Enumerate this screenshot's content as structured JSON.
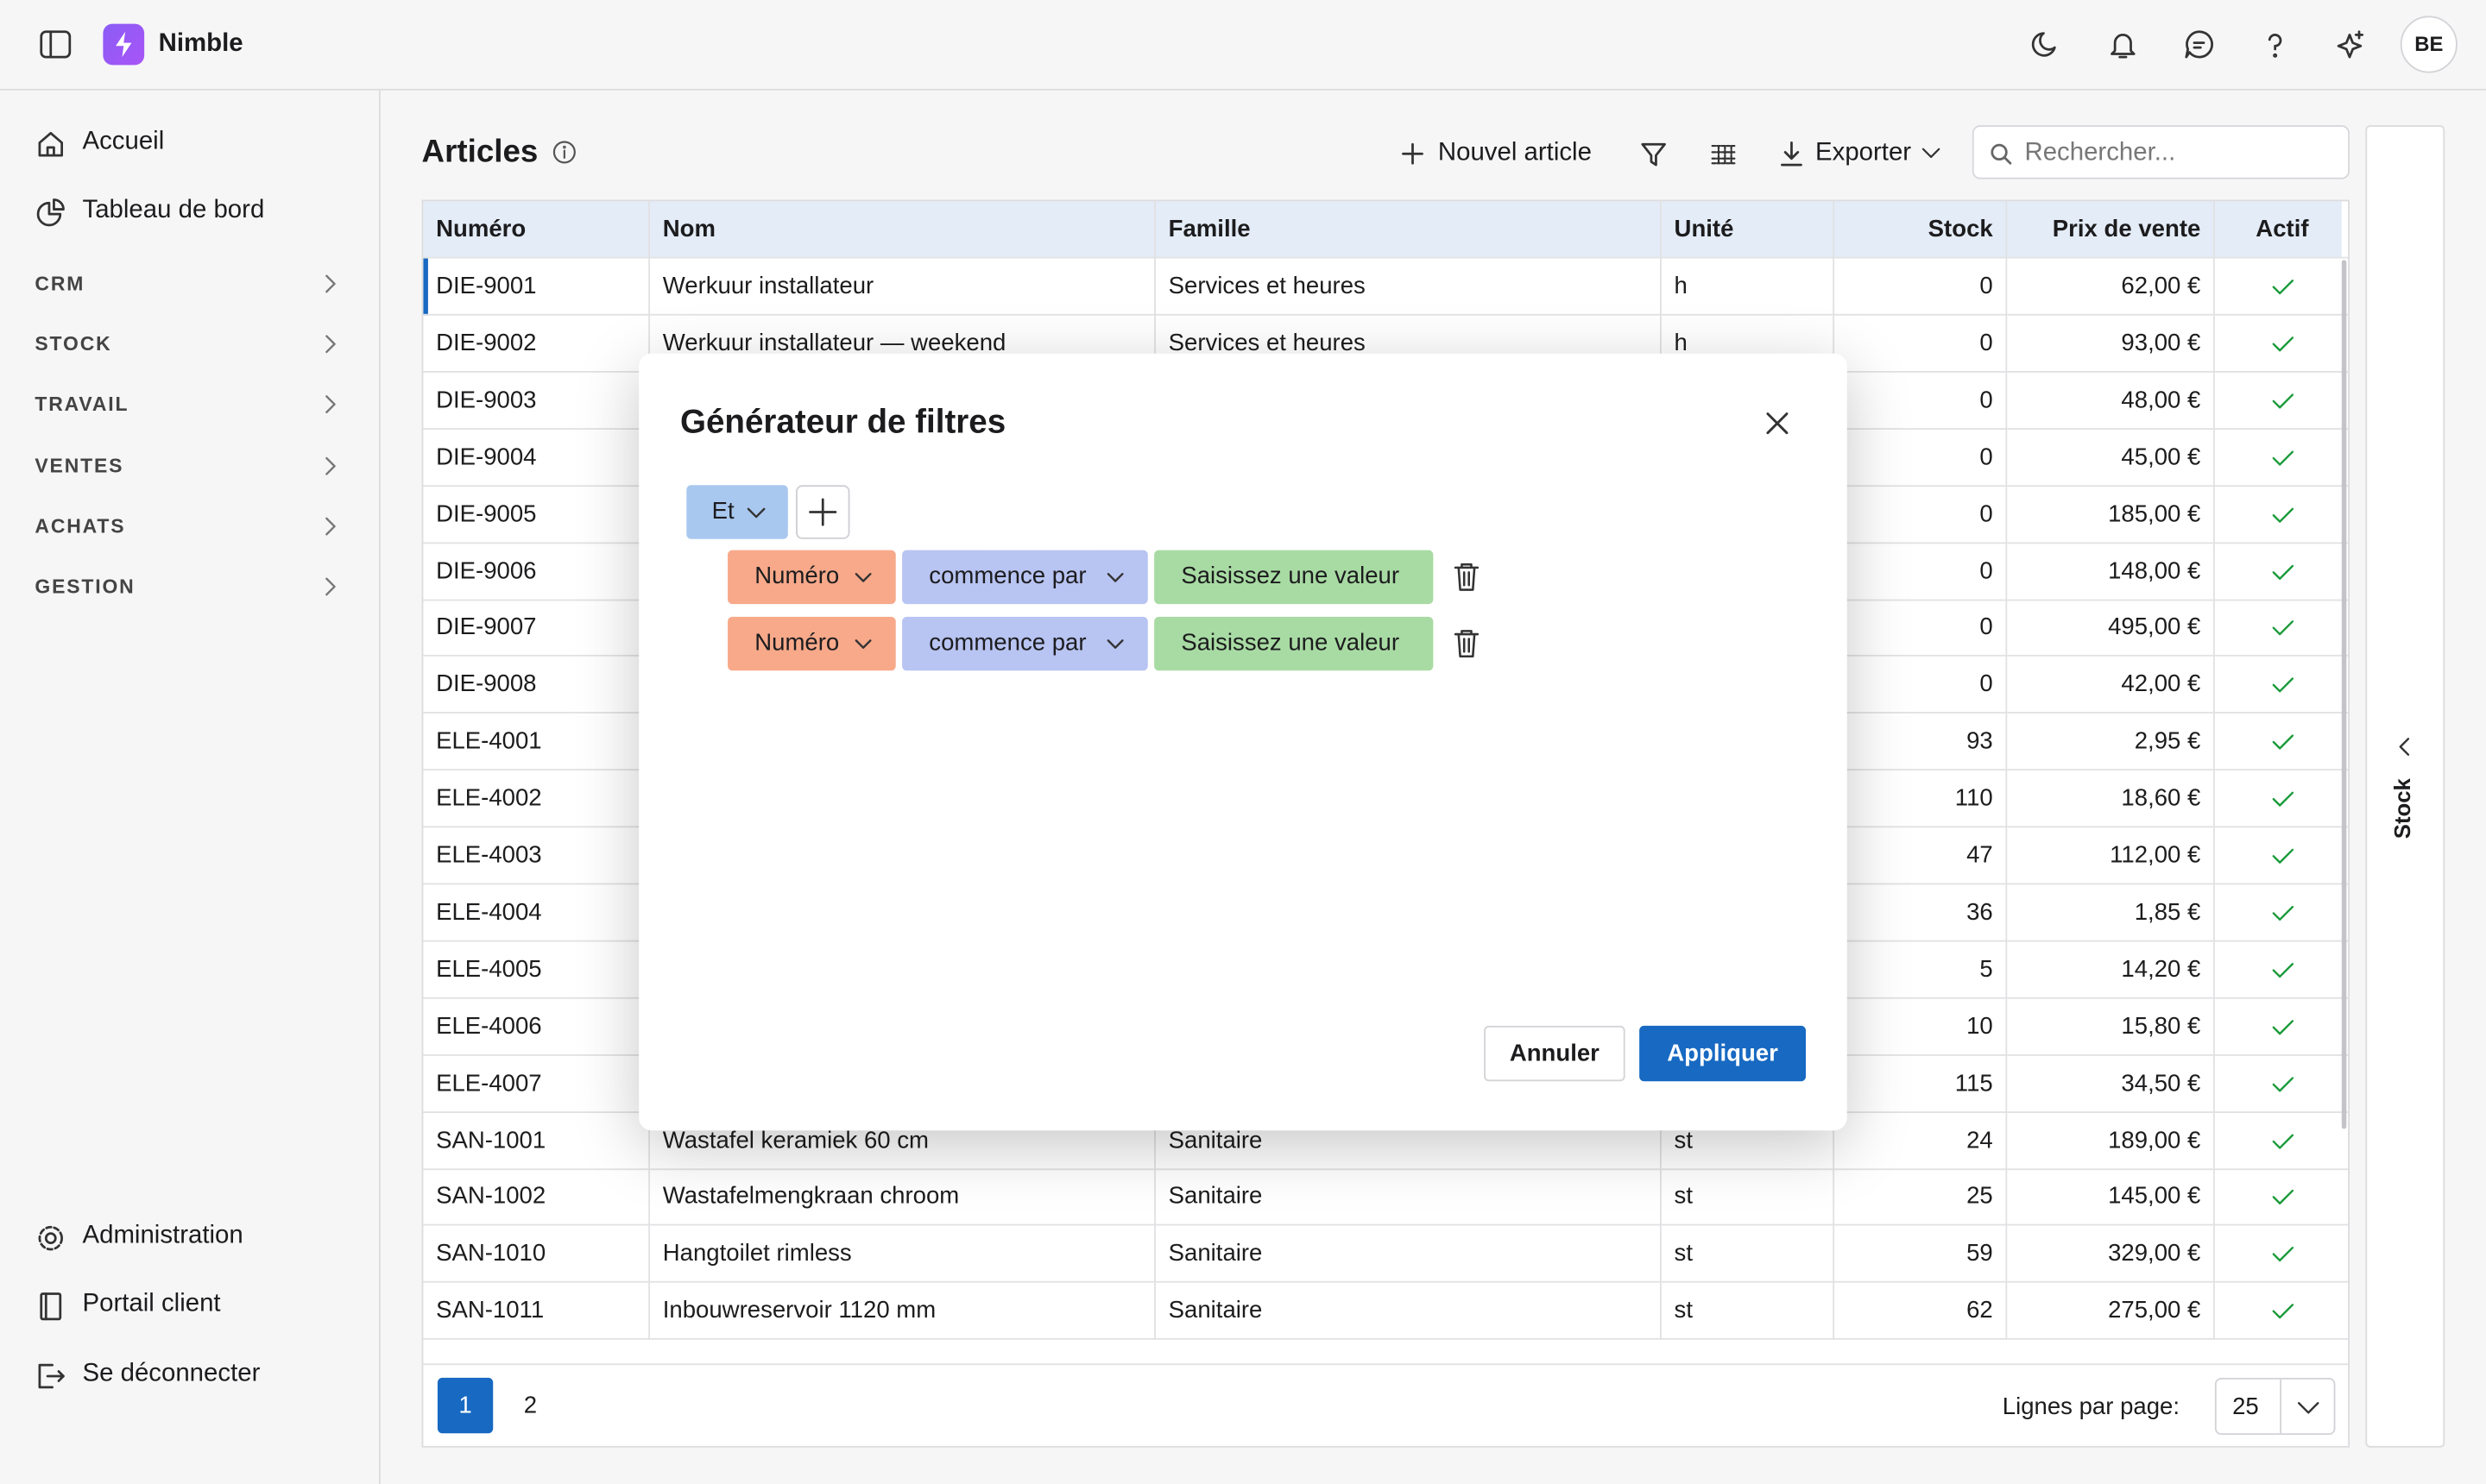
{
  "app": {
    "name": "Nimble",
    "avatar": "BE"
  },
  "sidebar": {
    "top": [
      "Accueil",
      "Tableau de bord"
    ],
    "sections": [
      "CRM",
      "STOCK",
      "TRAVAIL",
      "VENTES",
      "ACHATS",
      "GESTION"
    ],
    "bottom": [
      "Administration",
      "Portail client",
      "Se déconnecter"
    ]
  },
  "page": {
    "title": "Articles",
    "new_button": "Nouvel article",
    "export_button": "Exporter",
    "search_placeholder": "Rechercher...",
    "side_panel": "Stock"
  },
  "table": {
    "columns": [
      "Numéro",
      "Nom",
      "Famille",
      "Unité",
      "Stock",
      "Prix de vente",
      "Actif"
    ],
    "rows": [
      {
        "numero": "DIE-9001",
        "nom": "Werkuur installateur",
        "famille": "Services et heures",
        "unite": "h",
        "stock": 0,
        "prix": "62,00 €"
      },
      {
        "numero": "DIE-9002",
        "nom": "Werkuur installateur — weekend",
        "famille": "Services et heures",
        "unite": "h",
        "stock": 0,
        "prix": "93,00 €"
      },
      {
        "numero": "DIE-9003",
        "stock": 0,
        "prix": "48,00 €"
      },
      {
        "numero": "DIE-9004",
        "stock": 0,
        "prix": "45,00 €"
      },
      {
        "numero": "DIE-9005",
        "stock": 0,
        "prix": "185,00 €"
      },
      {
        "numero": "DIE-9006",
        "stock": 0,
        "prix": "148,00 €"
      },
      {
        "numero": "DIE-9007",
        "stock": 0,
        "prix": "495,00 €"
      },
      {
        "numero": "DIE-9008",
        "stock": 0,
        "prix": "42,00 €"
      },
      {
        "numero": "ELE-4001",
        "stock": 93,
        "prix": "2,95 €"
      },
      {
        "numero": "ELE-4002",
        "stock": 110,
        "prix": "18,60 €"
      },
      {
        "numero": "ELE-4003",
        "stock": 47,
        "prix": "112,00 €"
      },
      {
        "numero": "ELE-4004",
        "stock": 36,
        "prix": "1,85 €"
      },
      {
        "numero": "ELE-4005",
        "stock": 5,
        "prix": "14,20 €"
      },
      {
        "numero": "ELE-4006",
        "stock": 10,
        "prix": "15,80 €"
      },
      {
        "numero": "ELE-4007",
        "stock": 115,
        "prix": "34,50 €"
      },
      {
        "numero": "SAN-1001",
        "nom": "Wastafel keramiek 60 cm",
        "famille": "Sanitaire",
        "unite": "st",
        "stock": 24,
        "prix": "189,00 €"
      },
      {
        "numero": "SAN-1002",
        "nom": "Wastafelmengkraan chroom",
        "famille": "Sanitaire",
        "unite": "st",
        "stock": 25,
        "prix": "145,00 €"
      },
      {
        "numero": "SAN-1010",
        "nom": "Hangtoilet rimless",
        "famille": "Sanitaire",
        "unite": "st",
        "stock": 59,
        "prix": "329,00 €"
      },
      {
        "numero": "SAN-1011",
        "nom": "Inbouwreservoir 1120 mm",
        "famille": "Sanitaire",
        "unite": "st",
        "stock": 62,
        "prix": "275,00 €"
      }
    ]
  },
  "pagination": {
    "pages": [
      "1",
      "2"
    ],
    "rows_label": "Lignes par page:",
    "rows_per_page": "25"
  },
  "modal": {
    "title": "Générateur de filtres",
    "group_operator": "Et",
    "rules": [
      {
        "field": "Numéro",
        "operator": "commence par",
        "value_placeholder": "Saisissez une valeur"
      },
      {
        "field": "Numéro",
        "operator": "commence par",
        "value_placeholder": "Saisissez une valeur"
      }
    ],
    "cancel": "Annuler",
    "apply": "Appliquer"
  }
}
